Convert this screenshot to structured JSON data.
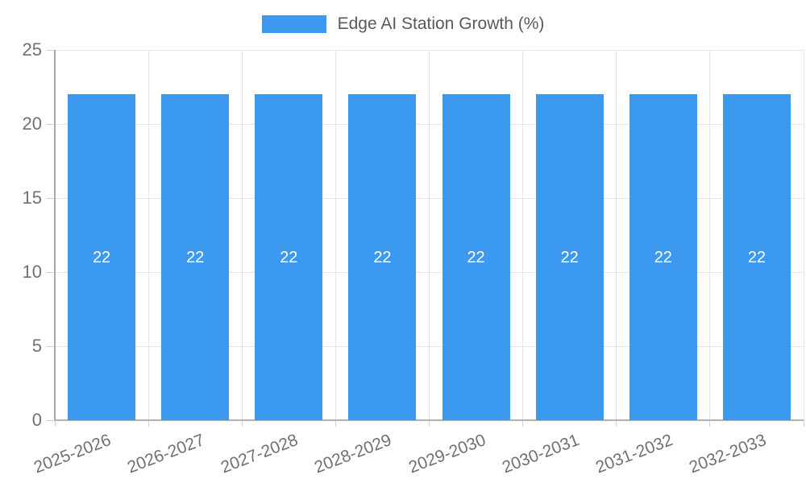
{
  "chart_data": {
    "type": "bar",
    "title": "",
    "legend": {
      "label": "Edge AI Station Growth (%)",
      "position": "top"
    },
    "categories": [
      "2025-2026",
      "2026-2027",
      "2027-2028",
      "2028-2029",
      "2029-2030",
      "2030-2031",
      "2031-2032",
      "2032-2033"
    ],
    "series": [
      {
        "name": "Edge AI Station Growth (%)",
        "values": [
          22,
          22,
          22,
          22,
          22,
          22,
          22,
          22
        ]
      }
    ],
    "value_labels": [
      "22",
      "22",
      "22",
      "22",
      "22",
      "22",
      "22",
      "22"
    ],
    "xlabel": "",
    "ylabel": "",
    "ylim": [
      0,
      25
    ],
    "yticks": [
      0,
      5,
      10,
      15,
      20,
      25
    ],
    "grid": true,
    "colors": {
      "bar": "#3b99f0",
      "grid": "#e6e6e6",
      "axis": "#adadad",
      "tick_text": "#717171",
      "legend_text": "#595959",
      "value_text": "#ffffff",
      "background": "#ffffff"
    }
  }
}
